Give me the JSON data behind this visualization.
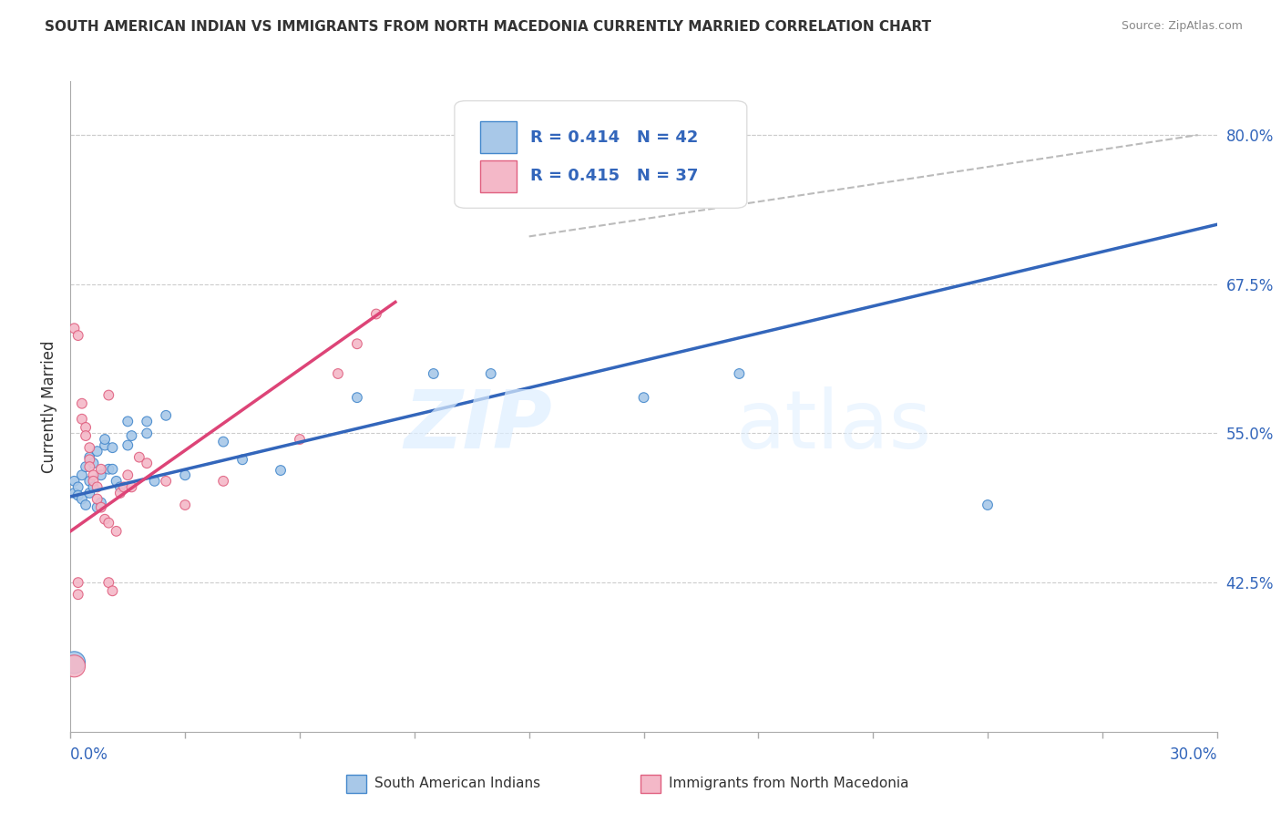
{
  "title": "SOUTH AMERICAN INDIAN VS IMMIGRANTS FROM NORTH MACEDONIA CURRENTLY MARRIED CORRELATION CHART",
  "source": "Source: ZipAtlas.com",
  "ylabel": "Currently Married",
  "yticks": [
    0.425,
    0.55,
    0.675,
    0.8
  ],
  "ytick_labels": [
    "42.5%",
    "55.0%",
    "67.5%",
    "80.0%"
  ],
  "xmin": 0.0,
  "xmax": 0.3,
  "ymin": 0.3,
  "ymax": 0.845,
  "legend_r1": "R = 0.414",
  "legend_n1": "N = 42",
  "legend_r2": "R = 0.415",
  "legend_n2": "N = 37",
  "blue_color": "#a8c8e8",
  "pink_color": "#f4b8c8",
  "blue_edge_color": "#4488cc",
  "pink_edge_color": "#e06080",
  "blue_line_color": "#3366bb",
  "pink_line_color": "#dd4477",
  "blue_scatter": [
    [
      0.001,
      0.51
    ],
    [
      0.001,
      0.5
    ],
    [
      0.002,
      0.505
    ],
    [
      0.002,
      0.498
    ],
    [
      0.003,
      0.515
    ],
    [
      0.003,
      0.495
    ],
    [
      0.004,
      0.522
    ],
    [
      0.004,
      0.49
    ],
    [
      0.005,
      0.53
    ],
    [
      0.005,
      0.51
    ],
    [
      0.005,
      0.5
    ],
    [
      0.006,
      0.525
    ],
    [
      0.006,
      0.505
    ],
    [
      0.007,
      0.535
    ],
    [
      0.007,
      0.488
    ],
    [
      0.008,
      0.515
    ],
    [
      0.008,
      0.492
    ],
    [
      0.009,
      0.54
    ],
    [
      0.009,
      0.545
    ],
    [
      0.01,
      0.52
    ],
    [
      0.011,
      0.538
    ],
    [
      0.011,
      0.52
    ],
    [
      0.012,
      0.51
    ],
    [
      0.013,
      0.505
    ],
    [
      0.015,
      0.54
    ],
    [
      0.015,
      0.56
    ],
    [
      0.016,
      0.548
    ],
    [
      0.02,
      0.56
    ],
    [
      0.02,
      0.55
    ],
    [
      0.022,
      0.51
    ],
    [
      0.025,
      0.565
    ],
    [
      0.03,
      0.515
    ],
    [
      0.04,
      0.543
    ],
    [
      0.045,
      0.528
    ],
    [
      0.055,
      0.519
    ],
    [
      0.075,
      0.58
    ],
    [
      0.095,
      0.6
    ],
    [
      0.11,
      0.6
    ],
    [
      0.15,
      0.58
    ],
    [
      0.175,
      0.6
    ],
    [
      0.24,
      0.49
    ],
    [
      0.001,
      0.358
    ]
  ],
  "blue_sizes": [
    60,
    60,
    60,
    60,
    60,
    60,
    60,
    60,
    60,
    60,
    60,
    60,
    60,
    60,
    60,
    60,
    60,
    60,
    60,
    60,
    60,
    60,
    60,
    60,
    60,
    60,
    60,
    60,
    60,
    60,
    60,
    60,
    60,
    60,
    60,
    60,
    60,
    60,
    60,
    60,
    60,
    300
  ],
  "pink_scatter": [
    [
      0.001,
      0.638
    ],
    [
      0.002,
      0.632
    ],
    [
      0.003,
      0.575
    ],
    [
      0.003,
      0.562
    ],
    [
      0.004,
      0.555
    ],
    [
      0.004,
      0.548
    ],
    [
      0.005,
      0.538
    ],
    [
      0.005,
      0.528
    ],
    [
      0.005,
      0.522
    ],
    [
      0.006,
      0.515
    ],
    [
      0.006,
      0.51
    ],
    [
      0.007,
      0.505
    ],
    [
      0.007,
      0.495
    ],
    [
      0.008,
      0.52
    ],
    [
      0.008,
      0.488
    ],
    [
      0.009,
      0.478
    ],
    [
      0.01,
      0.582
    ],
    [
      0.01,
      0.425
    ],
    [
      0.011,
      0.418
    ],
    [
      0.012,
      0.468
    ],
    [
      0.013,
      0.5
    ],
    [
      0.014,
      0.505
    ],
    [
      0.015,
      0.515
    ],
    [
      0.016,
      0.505
    ],
    [
      0.018,
      0.53
    ],
    [
      0.02,
      0.525
    ],
    [
      0.025,
      0.51
    ],
    [
      0.03,
      0.49
    ],
    [
      0.04,
      0.51
    ],
    [
      0.06,
      0.545
    ],
    [
      0.07,
      0.6
    ],
    [
      0.075,
      0.625
    ],
    [
      0.08,
      0.65
    ],
    [
      0.01,
      0.475
    ],
    [
      0.002,
      0.425
    ],
    [
      0.002,
      0.415
    ],
    [
      0.001,
      0.355
    ]
  ],
  "pink_sizes": [
    60,
    60,
    60,
    60,
    60,
    60,
    60,
    60,
    60,
    60,
    60,
    60,
    60,
    60,
    60,
    60,
    60,
    60,
    60,
    60,
    60,
    60,
    60,
    60,
    60,
    60,
    60,
    60,
    60,
    60,
    60,
    60,
    60,
    60,
    60,
    60,
    300
  ],
  "blue_line": {
    "x0": 0.0,
    "y0": 0.497,
    "x1": 0.3,
    "y1": 0.725
  },
  "pink_line": {
    "x0": 0.0,
    "y0": 0.468,
    "x1": 0.085,
    "y1": 0.66
  },
  "diag_line": {
    "x0": 0.12,
    "y0": 0.715,
    "x1": 0.295,
    "y1": 0.8
  },
  "watermark_zip": "ZIP",
  "watermark_atlas": "atlas",
  "title_fontsize": 11,
  "tick_color": "#3366bb"
}
